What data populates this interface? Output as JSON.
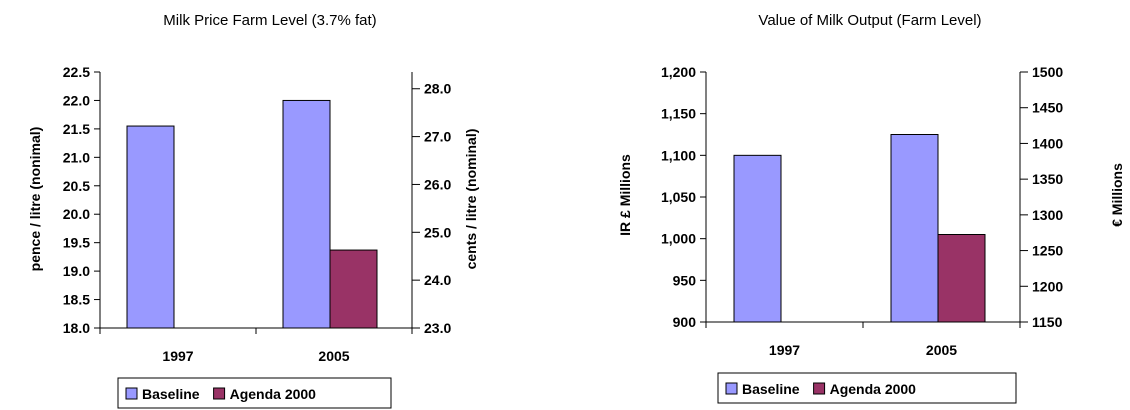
{
  "colors": {
    "baseline": "#9999ff",
    "agenda": "#993366",
    "axis": "#000000"
  },
  "chart_data": [
    {
      "type": "bar",
      "title": "Milk Price Farm Level (3.7% fat)",
      "categories": [
        "1997",
        "2005"
      ],
      "series": [
        {
          "name": "Baseline",
          "values": [
            21.55,
            22.0
          ]
        },
        {
          "name": "Agenda 2000",
          "values": [
            null,
            19.37
          ]
        }
      ],
      "ylabel": "pence / litre (nonimal)",
      "ylim": [
        18.0,
        22.5
      ],
      "yticks": [
        "18.0",
        "18.5",
        "19.0",
        "19.5",
        "20.0",
        "20.5",
        "21.0",
        "21.5",
        "22.0",
        "22.5"
      ],
      "y2label": "cents / litre (nominal)",
      "y2ticks": [
        "23.0",
        "24.0",
        "25.0",
        "26.0",
        "27.0",
        "28.0"
      ],
      "legend": "bottom"
    },
    {
      "type": "bar",
      "title": "Value of Milk Output (Farm Level)",
      "categories": [
        "1997",
        "2005"
      ],
      "series": [
        {
          "name": "Baseline",
          "values": [
            1100,
            1125
          ]
        },
        {
          "name": "Agenda 2000",
          "values": [
            null,
            1005
          ]
        }
      ],
      "ylabel": "IR £ Millions",
      "ylim": [
        900,
        1200
      ],
      "yticks": [
        "900",
        "950",
        "1,000",
        "1,050",
        "1,100",
        "1,150",
        "1,200"
      ],
      "y2label": "€ Millions",
      "y2ticks": [
        "1150",
        "1200",
        "1250",
        "1300",
        "1350",
        "1400",
        "1450",
        "1500"
      ],
      "legend": "bottom"
    }
  ]
}
